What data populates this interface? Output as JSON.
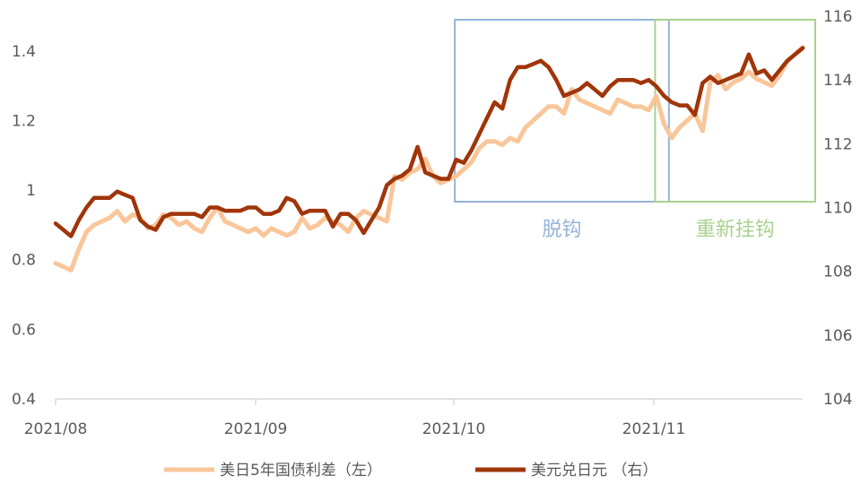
{
  "chart_data": {
    "type": "line",
    "x_ticks": [
      "2021/08",
      "2021/09",
      "2021/10",
      "2021/11"
    ],
    "y_left": {
      "ylim": [
        0.4,
        1.5
      ],
      "ticks": [
        "0.4",
        "0.6",
        "0.8",
        "1",
        "1.2",
        "1.4"
      ]
    },
    "y_right": {
      "ylim": [
        104,
        116
      ],
      "ticks": [
        "104",
        "106",
        "108",
        "110",
        "112",
        "114",
        "116"
      ]
    },
    "series": [
      {
        "name": "美日5年国债利差（左）",
        "axis": "left",
        "color": "#F9C69A",
        "values": [
          0.79,
          0.78,
          0.77,
          0.83,
          0.88,
          0.9,
          0.91,
          0.92,
          0.94,
          0.91,
          0.93,
          0.92,
          0.89,
          0.9,
          0.93,
          0.92,
          0.9,
          0.91,
          0.89,
          0.88,
          0.92,
          0.95,
          0.91,
          0.9,
          0.89,
          0.88,
          0.89,
          0.87,
          0.89,
          0.88,
          0.87,
          0.88,
          0.92,
          0.89,
          0.9,
          0.92,
          0.91,
          0.9,
          0.88,
          0.92,
          0.94,
          0.93,
          0.92,
          0.91,
          1.04,
          1.03,
          1.05,
          1.06,
          1.09,
          1.04,
          1.02,
          1.03,
          1.04,
          1.06,
          1.08,
          1.12,
          1.14,
          1.14,
          1.13,
          1.15,
          1.14,
          1.18,
          1.2,
          1.22,
          1.24,
          1.24,
          1.22,
          1.29,
          1.26,
          1.25,
          1.24,
          1.23,
          1.22,
          1.26,
          1.25,
          1.24,
          1.24,
          1.23,
          1.27,
          1.19,
          1.15,
          1.18,
          1.2,
          1.22,
          1.17,
          1.31,
          1.33,
          1.29,
          1.31,
          1.32,
          1.34,
          1.32,
          1.31,
          1.3,
          1.33,
          1.37,
          1.39,
          1.41
        ]
      },
      {
        "name": "美元兑日元 （右）",
        "axis": "right",
        "color": "#A0350A",
        "values": [
          109.5,
          109.3,
          109.1,
          109.6,
          110.0,
          110.3,
          110.3,
          110.3,
          110.5,
          110.4,
          110.3,
          109.6,
          109.4,
          109.3,
          109.7,
          109.8,
          109.8,
          109.8,
          109.8,
          109.7,
          110.0,
          110.0,
          109.9,
          109.9,
          109.9,
          110.0,
          110.0,
          109.8,
          109.8,
          109.9,
          110.3,
          110.2,
          109.8,
          109.9,
          109.9,
          109.9,
          109.4,
          109.8,
          109.8,
          109.6,
          109.2,
          109.6,
          110.0,
          110.7,
          110.9,
          111.0,
          111.2,
          111.9,
          111.1,
          111.0,
          110.9,
          110.9,
          111.5,
          111.4,
          111.8,
          112.3,
          112.8,
          113.3,
          113.1,
          114.0,
          114.4,
          114.4,
          114.5,
          114.6,
          114.4,
          114.0,
          113.5,
          113.6,
          113.7,
          113.9,
          113.7,
          113.5,
          113.8,
          114.0,
          114.0,
          114.0,
          113.9,
          114.0,
          113.8,
          113.5,
          113.3,
          113.2,
          113.2,
          112.9,
          113.9,
          114.1,
          113.9,
          114.0,
          114.1,
          114.2,
          114.8,
          114.2,
          114.3,
          114.0,
          114.3,
          114.6,
          114.8,
          115.0
        ]
      }
    ],
    "annotations": [
      {
        "label": "脱钩",
        "color": "#95B3D7",
        "start_index": 53,
        "end_index": 78
      },
      {
        "label": "重新挂钩",
        "color": "#A9D18E",
        "start_index": 79,
        "end_index": 97
      }
    ],
    "legend_position": "bottom",
    "grid": false
  }
}
